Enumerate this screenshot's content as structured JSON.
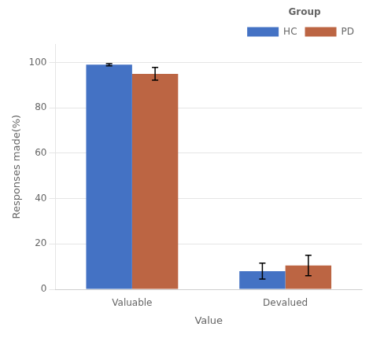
{
  "chart_data": {
    "type": "bar",
    "categories": [
      "Valuable",
      "Devalued"
    ],
    "series": [
      {
        "name": "HC",
        "color": "#4472c4",
        "values": [
          99.0,
          8.0
        ],
        "errors": [
          0.5,
          3.5
        ]
      },
      {
        "name": "PD",
        "color": "#bc6543",
        "values": [
          95.0,
          10.5
        ],
        "errors": [
          2.8,
          4.5
        ]
      }
    ],
    "xlabel": "Value",
    "ylabel": "Responses made(%)",
    "legend_title": "Group",
    "ylim": [
      0,
      108
    ],
    "yticks": [
      0,
      20,
      40,
      60,
      80,
      100
    ],
    "grid": true,
    "legend": "upper right"
  }
}
